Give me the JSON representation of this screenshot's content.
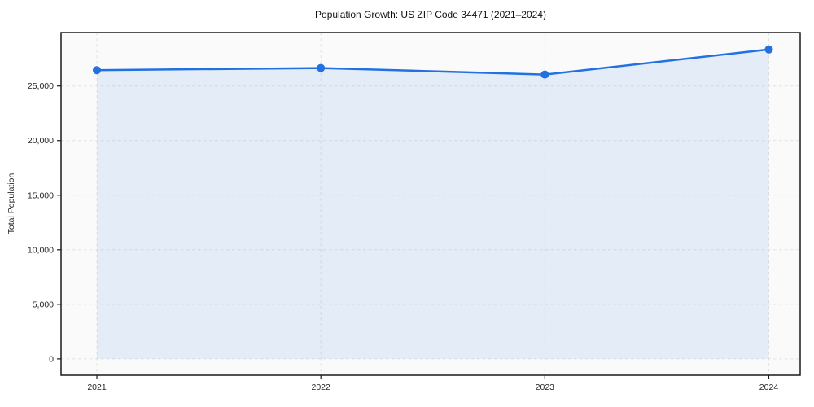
{
  "chart_data": {
    "type": "line",
    "title": "Population Growth: US ZIP Code 34471 (2021–2024)",
    "xlabel": "",
    "ylabel": "Total Population",
    "x": [
      2021,
      2022,
      2023,
      2024
    ],
    "xtick_labels": [
      "2021",
      "2022",
      "2023",
      "2024"
    ],
    "series": [
      {
        "name": "Total Population",
        "values": [
          26450,
          26650,
          26050,
          28350
        ]
      }
    ],
    "area_fill": true,
    "area_baseline": 0,
    "xlim": [
      2020.84,
      2024.14
    ],
    "ylim": [
      -1500,
      29900
    ],
    "yticks": [
      0,
      5000,
      10000,
      15000,
      20000,
      25000
    ],
    "ytick_labels": [
      "0",
      "5,000",
      "10,000",
      "15,000",
      "20,000",
      "25,000"
    ],
    "grid": true,
    "grid_style": "dashed",
    "legend_position": "none",
    "colors": {
      "line": "#2271e3",
      "marker": "#2271e3",
      "area": "#2271e3",
      "area_opacity": "0.10",
      "plot_background": "#fafafa",
      "grid": "#e2e2e2",
      "spine": "#1a1a1a",
      "tick_text": "#262626",
      "title_text": "#111111"
    }
  }
}
